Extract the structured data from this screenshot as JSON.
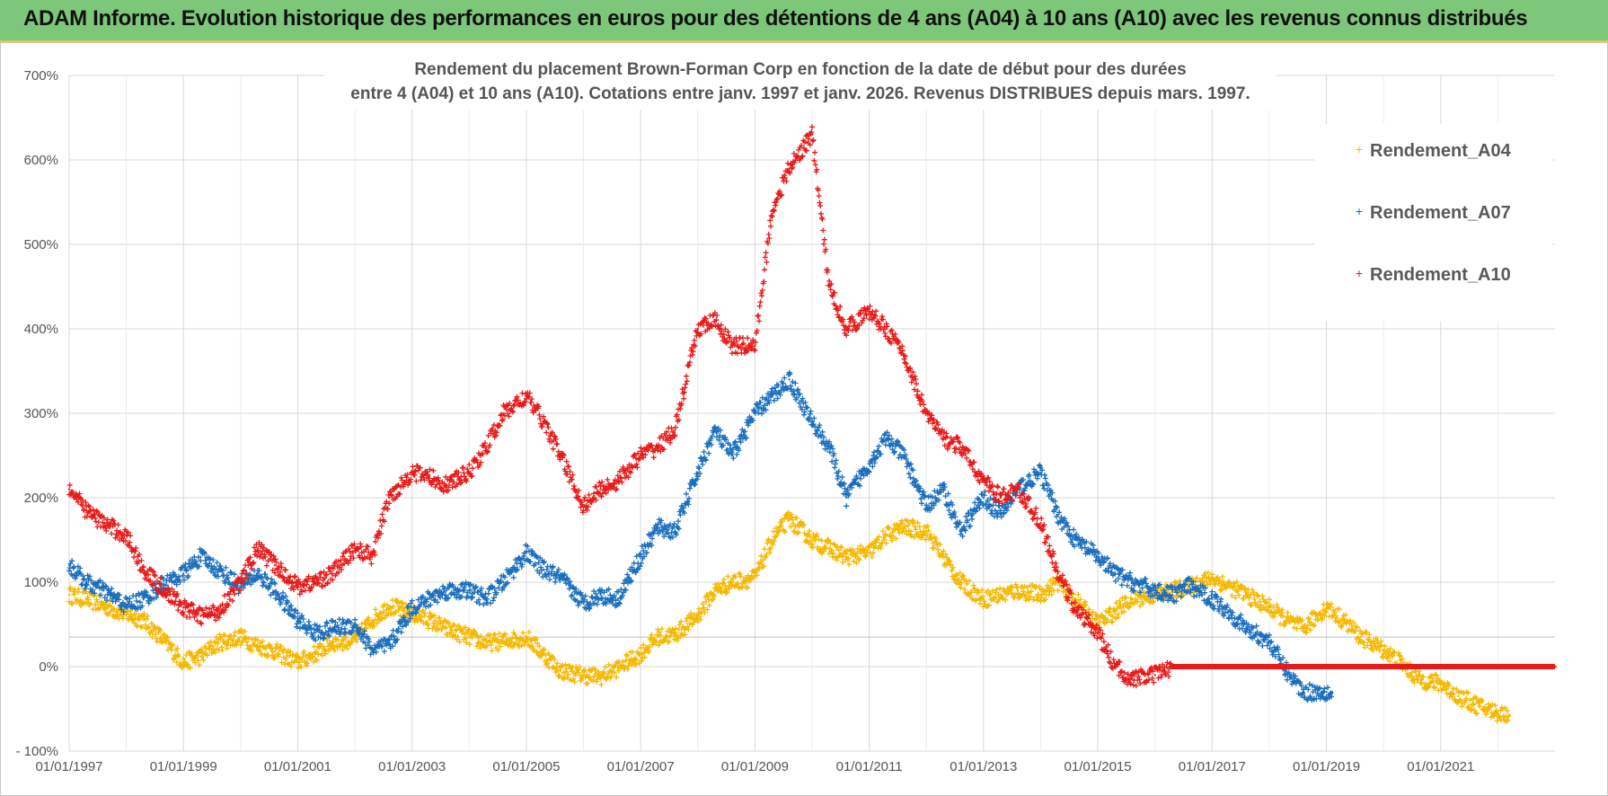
{
  "banner": {
    "title": "ADAM Informe. Evolution historique des performances en euros pour des détentions de 4 ans (A04) à 10 ans (A10) avec les revenus connus distribués"
  },
  "chart_data": {
    "type": "scatter",
    "title_lines": [
      "Rendement du placement Brown-Forman Corp en fonction de la date de début pour des durées",
      "entre 4 (A04) et 10 ans (A10).  Cotations entre janv. 1997 et janv. 2026.  Revenus DISTRIBUES depuis mars. 1997."
    ],
    "xlabel": "",
    "ylabel": "",
    "x_range_years": [
      1997.0,
      2023.0
    ],
    "x_tick_values": [
      1997,
      1999,
      2001,
      2003,
      2005,
      2007,
      2009,
      2011,
      2013,
      2015,
      2017,
      2019,
      2021
    ],
    "x_tick_labels": [
      "01/01/1997",
      "01/01/1999",
      "01/01/2001",
      "01/01/2003",
      "01/01/2005",
      "01/01/2007",
      "01/01/2009",
      "01/01/2011",
      "01/01/2013",
      "01/01/2015",
      "01/01/2017",
      "01/01/2019",
      "01/01/2021"
    ],
    "ylim": [
      -100,
      700
    ],
    "y_ticks": [
      -100,
      0,
      100,
      200,
      300,
      400,
      500,
      600,
      700
    ],
    "y_tick_labels": [
      "- 100%",
      "0%",
      "100%",
      "200%",
      "300%",
      "400%",
      "500%",
      "600%",
      "700%"
    ],
    "grid": true,
    "legend_position": "top-right",
    "series": [
      {
        "name": "Rendement_A04",
        "color": "#f5b800",
        "points": [
          [
            1997.0,
            85
          ],
          [
            1997.3,
            80
          ],
          [
            1997.6,
            72
          ],
          [
            1998.0,
            62
          ],
          [
            1998.3,
            55
          ],
          [
            1998.6,
            35
          ],
          [
            1999.0,
            5
          ],
          [
            1999.3,
            12
          ],
          [
            1999.6,
            28
          ],
          [
            2000.0,
            35
          ],
          [
            2000.3,
            25
          ],
          [
            2000.6,
            18
          ],
          [
            2001.0,
            5
          ],
          [
            2001.3,
            15
          ],
          [
            2001.6,
            28
          ],
          [
            2002.0,
            32
          ],
          [
            2002.3,
            55
          ],
          [
            2002.6,
            72
          ],
          [
            2003.0,
            62
          ],
          [
            2003.3,
            55
          ],
          [
            2003.6,
            45
          ],
          [
            2004.0,
            35
          ],
          [
            2004.3,
            28
          ],
          [
            2004.6,
            30
          ],
          [
            2005.0,
            35
          ],
          [
            2005.3,
            15
          ],
          [
            2005.6,
            -5
          ],
          [
            2006.0,
            -10
          ],
          [
            2006.3,
            -12
          ],
          [
            2006.6,
            -2
          ],
          [
            2007.0,
            15
          ],
          [
            2007.3,
            35
          ],
          [
            2007.6,
            38
          ],
          [
            2008.0,
            60
          ],
          [
            2008.3,
            90
          ],
          [
            2008.6,
            100
          ],
          [
            2009.0,
            105
          ],
          [
            2009.3,
            150
          ],
          [
            2009.6,
            175
          ],
          [
            2010.0,
            150
          ],
          [
            2010.3,
            140
          ],
          [
            2010.6,
            130
          ],
          [
            2011.0,
            135
          ],
          [
            2011.3,
            155
          ],
          [
            2011.6,
            165
          ],
          [
            2012.0,
            160
          ],
          [
            2012.3,
            130
          ],
          [
            2012.6,
            100
          ],
          [
            2013.0,
            80
          ],
          [
            2013.3,
            85
          ],
          [
            2013.6,
            90
          ],
          [
            2014.0,
            85
          ],
          [
            2014.3,
            100
          ],
          [
            2014.6,
            80
          ],
          [
            2015.0,
            50
          ],
          [
            2015.3,
            65
          ],
          [
            2015.6,
            80
          ],
          [
            2016.0,
            85
          ],
          [
            2016.3,
            90
          ],
          [
            2016.6,
            95
          ],
          [
            2017.0,
            105
          ],
          [
            2017.3,
            95
          ],
          [
            2017.6,
            85
          ],
          [
            2018.0,
            70
          ],
          [
            2018.3,
            55
          ],
          [
            2018.6,
            45
          ],
          [
            2019.0,
            70
          ],
          [
            2019.3,
            55
          ],
          [
            2019.6,
            35
          ],
          [
            2020.0,
            20
          ],
          [
            2020.3,
            5
          ],
          [
            2020.6,
            -15
          ],
          [
            2021.0,
            -20
          ],
          [
            2021.3,
            -35
          ],
          [
            2021.6,
            -45
          ],
          [
            2022.0,
            -55
          ],
          [
            2022.2,
            -57
          ]
        ]
      },
      {
        "name": "Rendement_A07",
        "color": "#1a6ebd",
        "points": [
          [
            1997.0,
            120
          ],
          [
            1997.3,
            100
          ],
          [
            1997.6,
            90
          ],
          [
            1998.0,
            72
          ],
          [
            1998.3,
            80
          ],
          [
            1998.6,
            95
          ],
          [
            1999.0,
            110
          ],
          [
            1999.3,
            130
          ],
          [
            1999.6,
            115
          ],
          [
            2000.0,
            95
          ],
          [
            2000.3,
            110
          ],
          [
            2000.6,
            90
          ],
          [
            2001.0,
            55
          ],
          [
            2001.3,
            40
          ],
          [
            2001.6,
            45
          ],
          [
            2002.0,
            50
          ],
          [
            2002.3,
            20
          ],
          [
            2002.6,
            25
          ],
          [
            2003.0,
            70
          ],
          [
            2003.3,
            80
          ],
          [
            2003.6,
            90
          ],
          [
            2004.0,
            90
          ],
          [
            2004.3,
            80
          ],
          [
            2004.6,
            100
          ],
          [
            2005.0,
            135
          ],
          [
            2005.3,
            115
          ],
          [
            2005.6,
            105
          ],
          [
            2006.0,
            75
          ],
          [
            2006.3,
            85
          ],
          [
            2006.6,
            80
          ],
          [
            2007.0,
            130
          ],
          [
            2007.3,
            165
          ],
          [
            2007.6,
            160
          ],
          [
            2008.0,
            230
          ],
          [
            2008.3,
            280
          ],
          [
            2008.6,
            250
          ],
          [
            2009.0,
            300
          ],
          [
            2009.3,
            320
          ],
          [
            2009.6,
            340
          ],
          [
            2010.0,
            290
          ],
          [
            2010.3,
            260
          ],
          [
            2010.6,
            200
          ],
          [
            2011.0,
            240
          ],
          [
            2011.3,
            270
          ],
          [
            2011.6,
            250
          ],
          [
            2012.0,
            190
          ],
          [
            2012.3,
            210
          ],
          [
            2012.6,
            160
          ],
          [
            2013.0,
            200
          ],
          [
            2013.3,
            180
          ],
          [
            2013.6,
            210
          ],
          [
            2014.0,
            230
          ],
          [
            2014.3,
            180
          ],
          [
            2014.6,
            150
          ],
          [
            2015.0,
            130
          ],
          [
            2015.3,
            110
          ],
          [
            2015.6,
            100
          ],
          [
            2016.0,
            90
          ],
          [
            2016.3,
            85
          ],
          [
            2016.6,
            95
          ],
          [
            2017.0,
            80
          ],
          [
            2017.3,
            65
          ],
          [
            2017.6,
            45
          ],
          [
            2018.0,
            30
          ],
          [
            2018.3,
            -5
          ],
          [
            2018.6,
            -30
          ],
          [
            2019.0,
            -30
          ],
          [
            2019.1,
            -30
          ]
        ]
      },
      {
        "name": "Rendement_A10",
        "color": "#e81a1a",
        "points": [
          [
            1997.0,
            210
          ],
          [
            1997.3,
            185
          ],
          [
            1997.6,
            170
          ],
          [
            1998.0,
            155
          ],
          [
            1998.3,
            115
          ],
          [
            1998.6,
            95
          ],
          [
            1999.0,
            70
          ],
          [
            1999.3,
            60
          ],
          [
            1999.6,
            65
          ],
          [
            2000.0,
            100
          ],
          [
            2000.3,
            140
          ],
          [
            2000.6,
            120
          ],
          [
            2001.0,
            95
          ],
          [
            2001.3,
            100
          ],
          [
            2001.6,
            110
          ],
          [
            2002.0,
            140
          ],
          [
            2002.3,
            130
          ],
          [
            2002.6,
            200
          ],
          [
            2003.0,
            230
          ],
          [
            2003.3,
            225
          ],
          [
            2003.6,
            215
          ],
          [
            2004.0,
            230
          ],
          [
            2004.3,
            260
          ],
          [
            2004.6,
            300
          ],
          [
            2005.0,
            320
          ],
          [
            2005.3,
            290
          ],
          [
            2005.6,
            250
          ],
          [
            2006.0,
            190
          ],
          [
            2006.3,
            210
          ],
          [
            2006.6,
            220
          ],
          [
            2007.0,
            250
          ],
          [
            2007.3,
            260
          ],
          [
            2007.6,
            280
          ],
          [
            2008.0,
            400
          ],
          [
            2008.3,
            410
          ],
          [
            2008.6,
            380
          ],
          [
            2009.0,
            380
          ],
          [
            2009.3,
            540
          ],
          [
            2009.6,
            590
          ],
          [
            2010.0,
            630
          ],
          [
            2010.3,
            450
          ],
          [
            2010.6,
            400
          ],
          [
            2011.0,
            420
          ],
          [
            2011.3,
            400
          ],
          [
            2011.6,
            370
          ],
          [
            2012.0,
            300
          ],
          [
            2012.3,
            270
          ],
          [
            2012.6,
            260
          ],
          [
            2013.0,
            220
          ],
          [
            2013.3,
            200
          ],
          [
            2013.6,
            210
          ],
          [
            2014.0,
            170
          ],
          [
            2014.3,
            110
          ],
          [
            2014.6,
            70
          ],
          [
            2015.0,
            40
          ],
          [
            2015.3,
            0
          ],
          [
            2015.6,
            -15
          ],
          [
            2016.0,
            -10
          ],
          [
            2016.3,
            0
          ],
          [
            2016.6,
            0
          ],
          [
            2017.0,
            0
          ],
          [
            2018.0,
            0
          ],
          [
            2019.0,
            0
          ],
          [
            2020.0,
            0
          ],
          [
            2021.0,
            0
          ],
          [
            2022.0,
            0
          ],
          [
            2023.0,
            0
          ]
        ]
      }
    ]
  }
}
